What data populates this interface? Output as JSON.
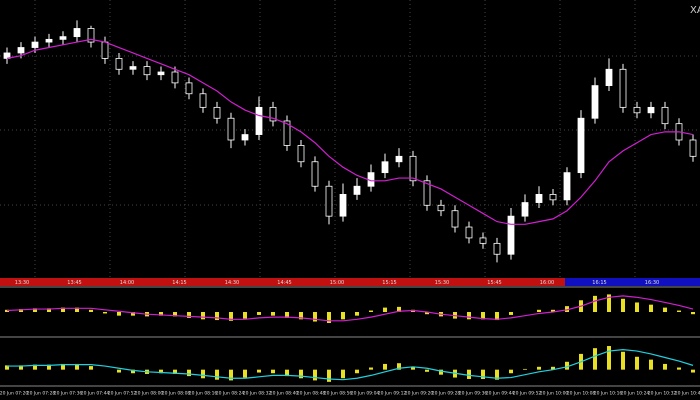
{
  "symbol": "XA",
  "time_scale_labels": [
    "13:30",
    "13:45",
    "14:00",
    "14:15",
    "14:30",
    "14:45",
    "15:00",
    "15:15",
    "15:30",
    "15:45",
    "16:00",
    "16:15",
    "16:30"
  ],
  "date_time_labels": [
    "20 Jun 07:20",
    "20 Jun 07:28",
    "20 Jun 07:36",
    "20 Jun 07:44",
    "20 Jun 07:52",
    "20 Jun 08:00",
    "20 Jun 08:08",
    "20 Jun 08:16",
    "20 Jun 08:24",
    "20 Jun 08:32",
    "20 Jun 08:40",
    "20 Jun 08:48",
    "20 Jun 08:56",
    "20 Jun 09:04",
    "20 Jun 09:12",
    "20 Jun 09:20",
    "20 Jun 09:28",
    "20 Jun 09:36",
    "20 Jun 09:44",
    "20 Jun 09:52",
    "20 Jun 10:00",
    "20 Jun 10:08",
    "20 Jun 10:16",
    "20 Jun 10:24",
    "20 Jun 10:32",
    "20 Jun 10:40"
  ],
  "chart_data": [
    {
      "type": "candlestick",
      "ylim": [
        0,
        100
      ],
      "up_color": "#ffffff",
      "down_color": "#000000",
      "wick_color": "#ffffff",
      "open": [
        80,
        82,
        84,
        86,
        87,
        88,
        91,
        86,
        80,
        76,
        77,
        74,
        75,
        71,
        67,
        62,
        58,
        50,
        52,
        62,
        57,
        48,
        42,
        33,
        22,
        30,
        33,
        38,
        42,
        44,
        35,
        26,
        24,
        18,
        14,
        12,
        8,
        22,
        27,
        30,
        28,
        38,
        58,
        70,
        76,
        62,
        60,
        62,
        56,
        50
      ],
      "high": [
        84,
        86,
        88,
        89,
        90,
        94,
        92,
        88,
        82,
        79,
        79,
        77,
        77,
        73,
        69,
        64,
        60,
        54,
        66,
        64,
        59,
        50,
        44,
        35,
        34,
        36,
        41,
        45,
        47,
        46,
        37,
        28,
        26,
        20,
        16,
        14,
        25,
        30,
        33,
        32,
        40,
        61,
        73,
        80,
        78,
        64,
        64,
        64,
        58,
        52
      ],
      "low": [
        78,
        80,
        82,
        84,
        85,
        86,
        84,
        78,
        74,
        74,
        72,
        72,
        69,
        65,
        60,
        56,
        47,
        48,
        50,
        55,
        46,
        40,
        31,
        19,
        20,
        28,
        31,
        36,
        40,
        33,
        24,
        22,
        16,
        12,
        10,
        5,
        6,
        20,
        25,
        26,
        26,
        36,
        56,
        68,
        60,
        58,
        58,
        54,
        48,
        42
      ],
      "close": [
        82,
        84,
        86,
        87,
        88,
        91,
        86,
        80,
        76,
        77,
        74,
        75,
        71,
        67,
        62,
        58,
        50,
        52,
        62,
        57,
        48,
        42,
        33,
        22,
        30,
        33,
        38,
        42,
        44,
        35,
        26,
        24,
        18,
        14,
        12,
        8,
        22,
        27,
        30,
        28,
        38,
        58,
        70,
        76,
        62,
        60,
        62,
        56,
        50,
        44
      ],
      "series": [
        {
          "color": "#d020d0",
          "values": [
            80,
            81,
            83,
            84,
            85,
            86,
            87,
            86,
            84,
            82,
            80,
            78,
            76,
            74,
            71,
            68,
            64,
            61,
            59,
            58,
            56,
            53,
            49,
            44,
            40,
            37,
            35,
            35,
            36,
            36,
            34,
            32,
            29,
            26,
            23,
            20,
            19,
            19,
            20,
            21,
            24,
            29,
            35,
            42,
            46,
            49,
            52,
            53,
            53,
            52
          ]
        }
      ]
    },
    {
      "type": "bar",
      "ylim": [
        -3,
        3
      ],
      "color": "#e8e020",
      "values": [
        0.3,
        0.4,
        0.5,
        0.5,
        0.6,
        0.6,
        0.3,
        -0.2,
        -0.5,
        -0.5,
        -0.6,
        -0.5,
        -0.6,
        -0.8,
        -1.0,
        -1.1,
        -1.2,
        -0.9,
        -0.4,
        -0.5,
        -0.8,
        -1.0,
        -1.3,
        -1.5,
        -1.0,
        -0.5,
        0.2,
        0.6,
        0.7,
        0.3,
        -0.3,
        -0.6,
        -0.9,
        -1.0,
        -1.0,
        -1.1,
        -0.4,
        0.0,
        0.3,
        0.3,
        0.8,
        1.6,
        2.2,
        2.4,
        1.8,
        1.3,
        1.0,
        0.6,
        0.2,
        -0.3
      ],
      "series": [
        {
          "color": "#d020d0",
          "values": [
            0.2,
            0.3,
            0.4,
            0.4,
            0.5,
            0.5,
            0.5,
            0.3,
            0.1,
            -0.1,
            -0.3,
            -0.4,
            -0.5,
            -0.6,
            -0.7,
            -0.8,
            -1.0,
            -1.0,
            -0.8,
            -0.7,
            -0.7,
            -0.8,
            -1.0,
            -1.2,
            -1.2,
            -1.0,
            -0.7,
            -0.3,
            0.1,
            0.2,
            0.0,
            -0.3,
            -0.5,
            -0.7,
            -0.9,
            -1.0,
            -0.8,
            -0.5,
            -0.2,
            0.0,
            0.3,
            0.8,
            1.5,
            2.0,
            2.2,
            2.0,
            1.7,
            1.3,
            0.9,
            0.4
          ]
        }
      ]
    },
    {
      "type": "bar",
      "ylim": [
        -2,
        4
      ],
      "color": "#e8e020",
      "values": [
        0.6,
        0.6,
        0.7,
        0.7,
        0.8,
        0.8,
        0.5,
        0.0,
        -0.4,
        -0.5,
        -0.6,
        -0.5,
        -0.6,
        -0.9,
        -1.2,
        -1.4,
        -1.5,
        -1.1,
        -0.4,
        -0.5,
        -0.9,
        -1.2,
        -1.5,
        -1.7,
        -1.2,
        -0.5,
        0.3,
        0.8,
        0.9,
        0.4,
        -0.3,
        -0.7,
        -1.1,
        -1.3,
        -1.3,
        -1.4,
        -0.5,
        0.1,
        0.4,
        0.4,
        1.1,
        2.2,
        3.0,
        3.3,
        2.5,
        1.8,
        1.4,
        0.8,
        0.3,
        -0.4
      ],
      "series": [
        {
          "color": "#20d0e0",
          "values": [
            0.5,
            0.5,
            0.6,
            0.6,
            0.7,
            0.7,
            0.7,
            0.5,
            0.2,
            -0.1,
            -0.3,
            -0.4,
            -0.5,
            -0.6,
            -0.8,
            -1.0,
            -1.2,
            -1.2,
            -1.0,
            -0.8,
            -0.8,
            -0.9,
            -1.1,
            -1.3,
            -1.4,
            -1.2,
            -0.8,
            -0.3,
            0.2,
            0.4,
            0.2,
            -0.2,
            -0.5,
            -0.8,
            -1.0,
            -1.2,
            -1.1,
            -0.7,
            -0.3,
            0.0,
            0.4,
            1.1,
            1.9,
            2.6,
            2.8,
            2.6,
            2.2,
            1.7,
            1.2,
            0.6
          ]
        }
      ]
    }
  ]
}
